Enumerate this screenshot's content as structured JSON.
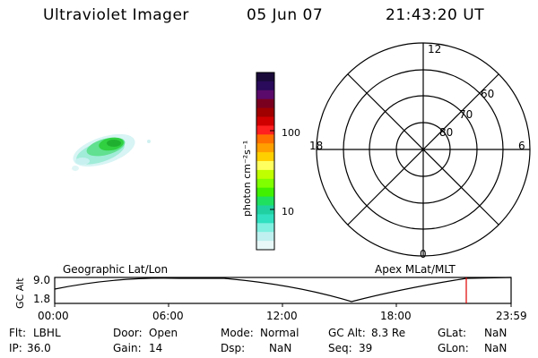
{
  "header": {
    "instrument": "Ultraviolet Imager",
    "date": "05 Jun 07",
    "time": "21:43:20 UT"
  },
  "colorbar": {
    "label": "photon cm⁻²s⁻¹",
    "tick_labels": [
      "100",
      "10"
    ],
    "colors": [
      "#1a0a3a",
      "#2a0a5a",
      "#5a0a6a",
      "#7a0020",
      "#a00000",
      "#d00000",
      "#ff2020",
      "#ff7000",
      "#ffa000",
      "#ffd000",
      "#ffff60",
      "#c0ff00",
      "#80ff00",
      "#40f000",
      "#20e060",
      "#20d0a0",
      "#30e0c0",
      "#80f0e0",
      "#c0f0f0",
      "#e8f8f8"
    ]
  },
  "polar_plot": {
    "mlt_labels": {
      "top": "12",
      "bottom": "0",
      "left": "18",
      "right": "6"
    },
    "lat_labels": [
      "60",
      "70",
      "80"
    ]
  },
  "timeline": {
    "left_title": "Geographic Lat/Lon",
    "right_title": "Apex MLat/MLT",
    "ylabel": "GC Alt",
    "y_ticks": [
      "9.0",
      "1.8"
    ],
    "x_ticks": [
      "00:00",
      "06:00",
      "12:00",
      "18:00",
      "23:59"
    ],
    "marker_color": "#e00000"
  },
  "info": {
    "row1": {
      "flt_label": "Flt:",
      "flt_value": "LBHL",
      "door_label": "Door:",
      "door_value": "Open",
      "mode_label": "Mode:",
      "mode_value": "Normal",
      "gcalt_label": "GC Alt:",
      "gcalt_value": "8.3 Re",
      "glat_label": "GLat:",
      "glat_value": "NaN"
    },
    "row2": {
      "ip_label": "IP:",
      "ip_value": "36.0",
      "gain_label": "Gain:",
      "gain_value": "14",
      "dsp_label": "Dsp:",
      "dsp_value": "NaN",
      "seq_label": "Seq:",
      "seq_value": "39",
      "glon_label": "GLon:",
      "glon_value": "NaN"
    }
  }
}
